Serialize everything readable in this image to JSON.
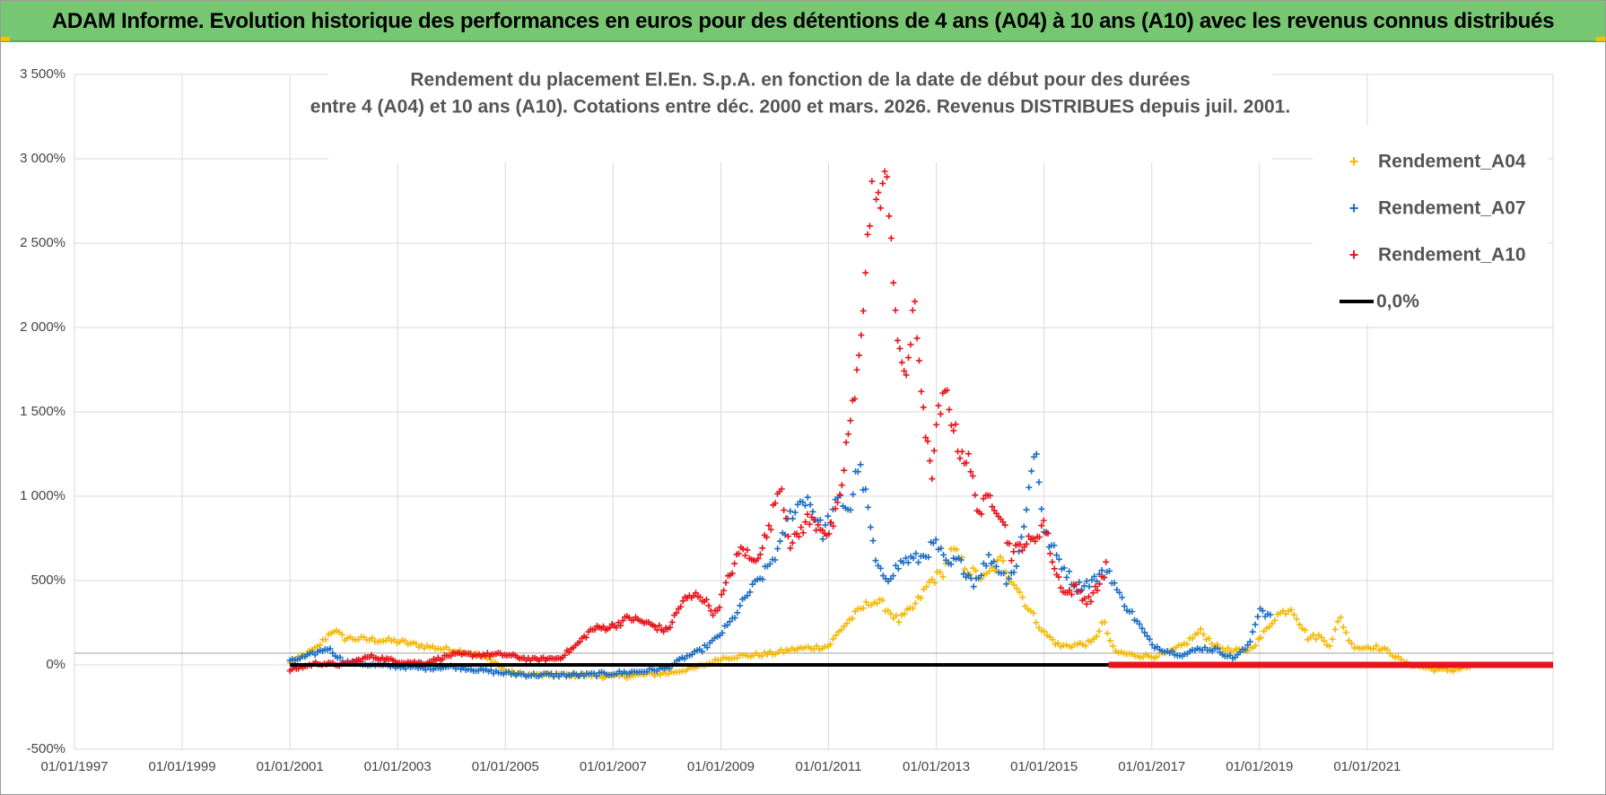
{
  "header": {
    "title": "ADAM Informe. Evolution historique des performances en euros pour des détentions de 4 ans (A04) à 10 ans (A10) avec les revenus connus distribués"
  },
  "colors": {
    "header_bg": "#77c672",
    "A04": "#f5b800",
    "A07": "#1c6fc4",
    "A10": "#e8141b",
    "zero": "#000000",
    "grid": "#d9d9d9"
  },
  "chart_data": {
    "type": "scatter",
    "title_line1": "Rendement du placement El.En. S.p.A. en fonction de la date de début pour des durées",
    "title_line2": "entre 4 (A04) et 10 ans (A10).  Cotations entre déc. 2000 et mars. 2026. Revenus DISTRIBUES depuis juil. 2001.",
    "xlabel": "",
    "ylabel": "",
    "xlim": [
      1997.0,
      2024.45
    ],
    "ylim": [
      -500,
      3500
    ],
    "x_tick_labels": [
      "01/01/1997",
      "01/01/1999",
      "01/01/2001",
      "01/01/2003",
      "01/01/2005",
      "01/01/2007",
      "01/01/2009",
      "01/01/2011",
      "01/01/2013",
      "01/01/2015",
      "01/01/2017",
      "01/01/2019",
      "01/01/2021"
    ],
    "x_tick_values": [
      1997,
      1999,
      2001,
      2003,
      2005,
      2007,
      2009,
      2011,
      2013,
      2015,
      2017,
      2019,
      2021
    ],
    "y_tick_labels": [
      "3 500%",
      "3 000%",
      "2 500%",
      "2 000%",
      "1 500%",
      "1 000%",
      "500%",
      "0%",
      "-500%"
    ],
    "y_tick_values": [
      3500,
      3000,
      2500,
      2000,
      1500,
      1000,
      500,
      0,
      -500
    ],
    "grid": true,
    "legend_position": "top-right",
    "series": [
      {
        "name": "Rendement_A04",
        "marker": "+",
        "x": [
          2001.0,
          2001.5,
          2001.8,
          2002.0,
          2002.5,
          2003.0,
          2003.5,
          2004.0,
          2004.4,
          2004.8,
          2005.0,
          2005.5,
          2006.0,
          2006.5,
          2007.0,
          2007.5,
          2008.0,
          2008.5,
          2008.8,
          2009.0,
          2009.3,
          2009.7,
          2010.0,
          2010.3,
          2010.6,
          2011.0,
          2011.2,
          2011.4,
          2011.6,
          2011.8,
          2012.0,
          2012.3,
          2012.6,
          2012.9,
          2013.1,
          2013.3,
          2013.6,
          2013.9,
          2014.2,
          2014.5,
          2014.7,
          2015.0,
          2015.3,
          2015.6,
          2015.9,
          2016.1,
          2016.3,
          2016.6,
          2017.0,
          2017.3,
          2017.6,
          2017.9,
          2018.2,
          2018.5,
          2018.8,
          2019.0,
          2019.3,
          2019.6,
          2019.9,
          2020.1,
          2020.3,
          2020.5,
          2020.7,
          2020.9,
          2021.1,
          2021.4,
          2021.7,
          2022.0,
          2022.3,
          2022.6,
          2022.9
        ],
        "y": [
          10,
          100,
          210,
          160,
          150,
          140,
          110,
          90,
          70,
          20,
          -40,
          -60,
          -60,
          -60,
          -70,
          -60,
          -50,
          -20,
          10,
          40,
          50,
          60,
          70,
          90,
          100,
          110,
          200,
          270,
          330,
          380,
          360,
          260,
          350,
          500,
          540,
          680,
          560,
          510,
          620,
          460,
          340,
          190,
          110,
          120,
          130,
          260,
          80,
          60,
          50,
          70,
          120,
          200,
          110,
          80,
          90,
          150,
          290,
          340,
          160,
          170,
          120,
          280,
          120,
          100,
          110,
          80,
          10,
          -10,
          -30,
          -30,
          -10
        ]
      },
      {
        "name": "Rendement_A07",
        "marker": "+",
        "x": [
          2001.0,
          2001.4,
          2001.7,
          2002.0,
          2002.5,
          2003.0,
          2003.5,
          2004.0,
          2004.5,
          2005.0,
          2005.5,
          2006.0,
          2006.5,
          2007.0,
          2007.5,
          2008.0,
          2008.3,
          2008.6,
          2008.9,
          2009.2,
          2009.5,
          2009.8,
          2010.1,
          2010.3,
          2010.6,
          2010.9,
          2011.0,
          2011.2,
          2011.4,
          2011.55,
          2011.7,
          2011.9,
          2012.1,
          2012.4,
          2012.7,
          2013.0,
          2013.2,
          2013.4,
          2013.7,
          2014.0,
          2014.3,
          2014.5,
          2014.7,
          2014.85,
          2015.0,
          2015.3,
          2015.6,
          2015.9,
          2016.2,
          2016.4,
          2016.7,
          2017.0,
          2017.3,
          2017.6,
          2017.9,
          2018.2,
          2018.5,
          2018.8,
          2019.0,
          2019.2
        ],
        "y": [
          20,
          60,
          100,
          20,
          0,
          -10,
          -20,
          -10,
          -30,
          -50,
          -60,
          -60,
          -60,
          -50,
          -40,
          -20,
          40,
          80,
          150,
          260,
          420,
          540,
          700,
          900,
          1000,
          780,
          860,
          980,
          920,
          1200,
          980,
          560,
          520,
          620,
          630,
          720,
          580,
          620,
          490,
          640,
          510,
          590,
          1000,
          1310,
          780,
          610,
          460,
          500,
          560,
          410,
          270,
          120,
          80,
          60,
          100,
          90,
          40,
          110,
          340,
          280
        ]
      },
      {
        "name": "Rendement_A10",
        "marker": "+",
        "x": [
          2001.0,
          2001.5,
          2002.0,
          2002.5,
          2003.0,
          2003.5,
          2004.0,
          2004.5,
          2005.0,
          2005.5,
          2006.0,
          2006.3,
          2006.6,
          2007.0,
          2007.3,
          2007.6,
          2008.0,
          2008.3,
          2008.6,
          2008.9,
          2009.2,
          2009.4,
          2009.6,
          2009.9,
          2010.1,
          2010.3,
          2010.6,
          2010.9,
          2011.0,
          2011.2,
          2011.35,
          2011.5,
          2011.6,
          2011.75,
          2011.85,
          2011.95,
          2012.1,
          2012.3,
          2012.45,
          2012.6,
          2012.8,
          2012.9,
          2013.05,
          2013.2,
          2013.4,
          2013.6,
          2013.8,
          2014.0,
          2014.2,
          2014.4,
          2014.6,
          2014.8,
          2015.0,
          2015.2,
          2015.4,
          2015.6,
          2015.8,
          2016.0,
          2016.15
        ],
        "y": [
          -30,
          10,
          0,
          50,
          20,
          10,
          60,
          60,
          60,
          30,
          40,
          110,
          210,
          230,
          280,
          250,
          200,
          380,
          420,
          300,
          560,
          700,
          600,
          800,
          1100,
          700,
          860,
          820,
          760,
          950,
          1350,
          1600,
          2000,
          2600,
          2980,
          2700,
          2900,
          1800,
          1750,
          2100,
          1400,
          1100,
          1500,
          1600,
          1300,
          1200,
          900,
          1000,
          900,
          650,
          720,
          730,
          850,
          560,
          420,
          460,
          370,
          460,
          580
        ]
      },
      {
        "name": "0,0%",
        "marker": "line",
        "x": [
          2001.0,
          2024.45
        ],
        "y": [
          0,
          0
        ]
      }
    ],
    "a10_flat_tail": {
      "x_start": 2016.2,
      "x_end": 2024.45,
      "y": 0
    }
  }
}
